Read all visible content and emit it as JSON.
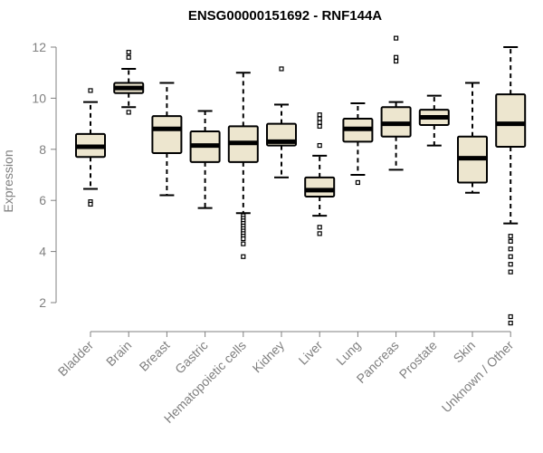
{
  "chart_data": {
    "type": "boxplot",
    "title": "ENSG00000151692 - RNF144A",
    "xlabel": "",
    "ylabel": "Expression",
    "ylim": [
      0.8,
      12.2
    ],
    "yticks": [
      2,
      4,
      6,
      8,
      10,
      12
    ],
    "box_fill": "#ede6cf",
    "stroke_color": "#000000",
    "axis_color": "#808080",
    "categories": [
      "Bladder",
      "Brain",
      "Breast",
      "Gastric",
      "Hematopoietic cells",
      "Kidney",
      "Liver",
      "Lung",
      "Pancreas",
      "Prostate",
      "Skin",
      "Unknown / Other"
    ],
    "boxes": [
      {
        "name": "Bladder",
        "q1": 7.7,
        "median": 8.1,
        "q3": 8.6,
        "whisker_low": 6.45,
        "whisker_high": 9.85,
        "outliers": [
          10.3,
          5.95,
          5.85
        ]
      },
      {
        "name": "Brain",
        "q1": 10.2,
        "median": 10.4,
        "q3": 10.6,
        "whisker_low": 9.65,
        "whisker_high": 11.15,
        "outliers": [
          11.8,
          11.6,
          9.45
        ]
      },
      {
        "name": "Breast",
        "q1": 7.85,
        "median": 8.8,
        "q3": 9.3,
        "whisker_low": 6.2,
        "whisker_high": 10.6,
        "outliers": []
      },
      {
        "name": "Gastric",
        "q1": 7.5,
        "median": 8.15,
        "q3": 8.7,
        "whisker_low": 5.7,
        "whisker_high": 9.5,
        "outliers": []
      },
      {
        "name": "Hematopoietic cells",
        "q1": 7.5,
        "median": 8.25,
        "q3": 8.9,
        "whisker_low": 5.5,
        "whisker_high": 11.0,
        "outliers": [
          5.4,
          5.3,
          5.2,
          5.1,
          5.0,
          4.9,
          4.8,
          4.7,
          4.6,
          4.5,
          4.3,
          3.8
        ]
      },
      {
        "name": "Kidney",
        "q1": 8.15,
        "median": 8.3,
        "q3": 9.0,
        "whisker_low": 6.9,
        "whisker_high": 9.75,
        "outliers": [
          11.15
        ]
      },
      {
        "name": "Liver",
        "q1": 6.15,
        "median": 6.4,
        "q3": 6.9,
        "whisker_low": 5.4,
        "whisker_high": 7.75,
        "outliers": [
          9.35,
          9.2,
          9.05,
          8.9,
          8.15,
          4.95,
          4.7
        ]
      },
      {
        "name": "Lung",
        "q1": 8.3,
        "median": 8.8,
        "q3": 9.2,
        "whisker_low": 7.0,
        "whisker_high": 9.8,
        "outliers": [
          6.7
        ]
      },
      {
        "name": "Pancreas",
        "q1": 8.5,
        "median": 9.0,
        "q3": 9.65,
        "whisker_low": 7.2,
        "whisker_high": 9.85,
        "outliers": [
          12.35,
          11.6,
          11.45
        ]
      },
      {
        "name": "Prostate",
        "q1": 8.95,
        "median": 9.25,
        "q3": 9.55,
        "whisker_low": 8.15,
        "whisker_high": 10.1,
        "outliers": []
      },
      {
        "name": "Skin",
        "q1": 6.7,
        "median": 7.65,
        "q3": 8.5,
        "whisker_low": 6.3,
        "whisker_high": 10.6,
        "outliers": []
      },
      {
        "name": "Unknown / Other",
        "q1": 8.1,
        "median": 9.0,
        "q3": 10.15,
        "whisker_low": 5.1,
        "whisker_high": 12.0,
        "outliers": [
          4.6,
          4.4,
          4.1,
          3.8,
          3.5,
          3.2,
          1.45,
          1.2
        ]
      }
    ]
  }
}
